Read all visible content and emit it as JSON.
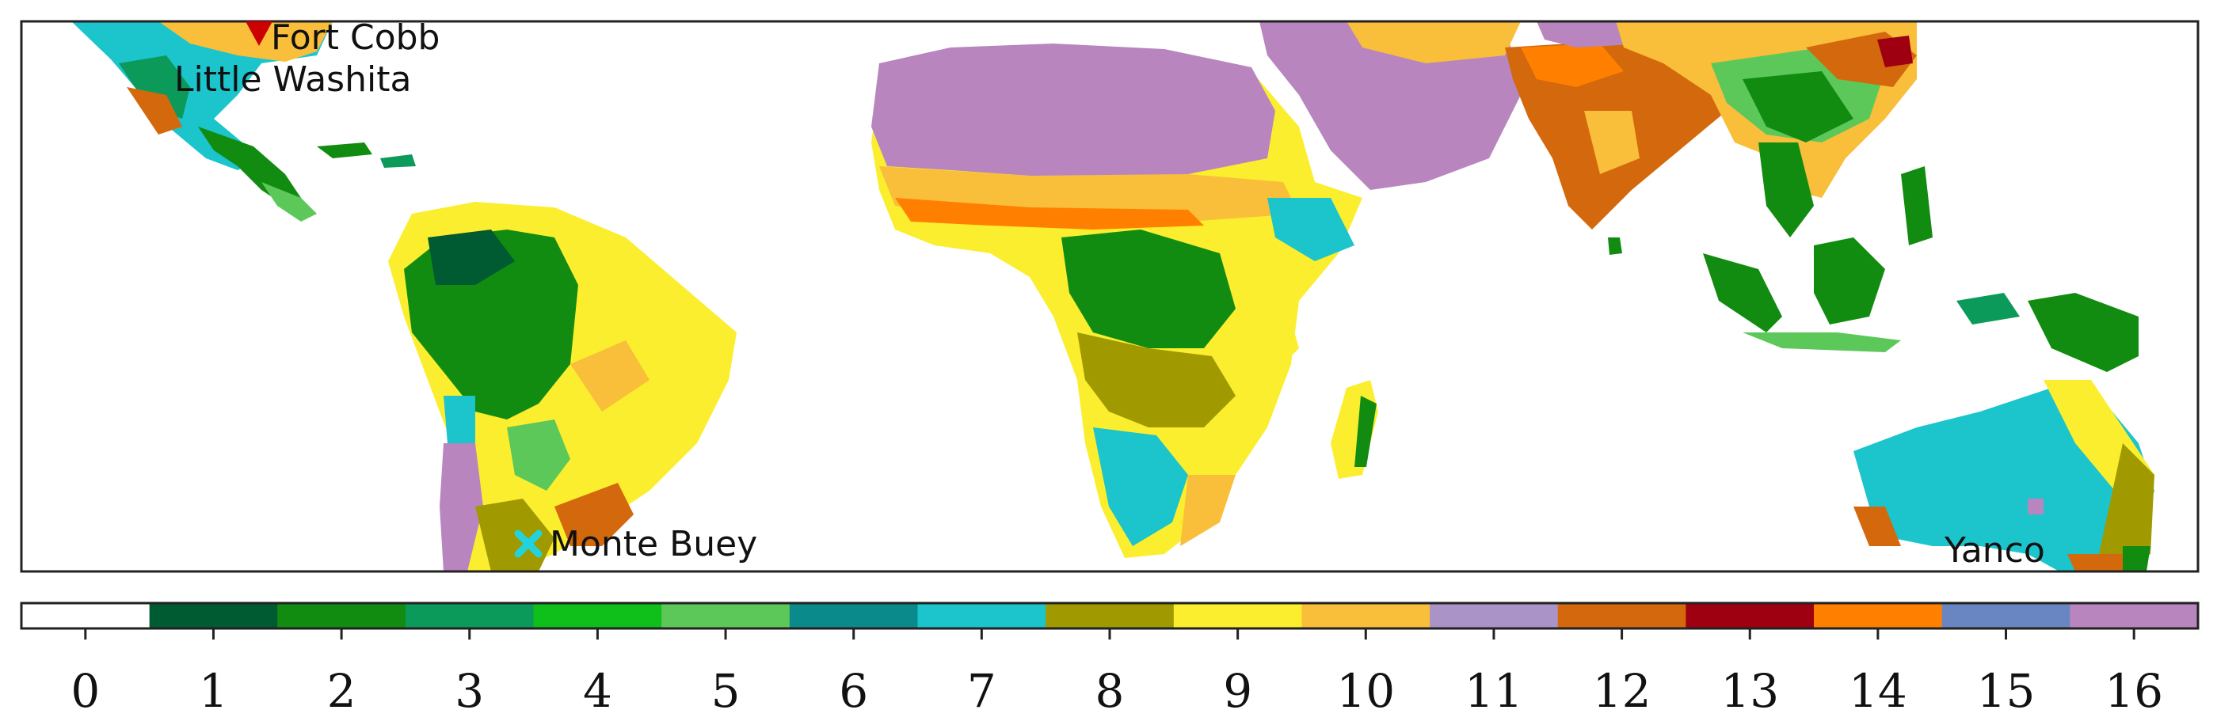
{
  "sites": [
    {
      "name": "Fort Cobb",
      "marker": "triangle-down-marker",
      "marker_color": "#cc0000"
    },
    {
      "name": "Little Washita",
      "marker": "none",
      "marker_color": ""
    },
    {
      "name": "Monte Buey",
      "marker": "x-marker",
      "marker_color": "#22d3dd"
    },
    {
      "name": "Yanco",
      "marker": "none",
      "marker_color": ""
    }
  ],
  "colorbar": {
    "ticks": [
      "0",
      "1",
      "2",
      "3",
      "4",
      "5",
      "6",
      "7",
      "8",
      "9",
      "10",
      "11",
      "12",
      "13",
      "14",
      "15",
      "16"
    ],
    "colors": [
      "#ffffff",
      "#005a32",
      "#118c11",
      "#0b9a5a",
      "#0fbf1a",
      "#5cc85a",
      "#0a8a8a",
      "#1cc4cc",
      "#a09a00",
      "#fbee2e",
      "#f9be3a",
      "#a993c7",
      "#d4680c",
      "#9e0012",
      "#ff8000",
      "#6a86c2",
      "#b885bf"
    ]
  },
  "map_colors": {
    "ocean": "#ffffff",
    "desert": "#b885bf",
    "forest": "#118c11",
    "savanna": "#fbee2e",
    "grassland": "#f9be3a",
    "shrub": "#a09a00",
    "cropland": "#d4680c",
    "open": "#1cc4cc",
    "frame": "#222222"
  }
}
